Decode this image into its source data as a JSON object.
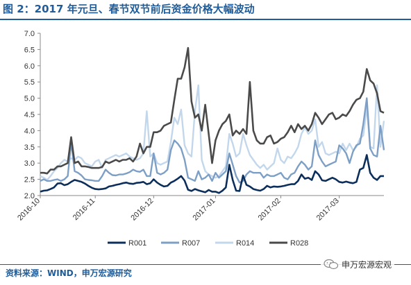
{
  "header": {
    "title": "图 2：2017 年元旦、春节双节前后资金价格大幅波动"
  },
  "footer": {
    "source": "资料来源：WIND，申万宏源研究"
  },
  "watermark": {
    "text": "申万宏源宏观",
    "icon": "wechat-icon"
  },
  "colors": {
    "R001": "#0c2e5a",
    "R007": "#7d9fc6",
    "R014": "#c3d7ec",
    "R028": "#4a4a4a",
    "accent": "#1f5c99"
  },
  "chart_data": {
    "type": "line",
    "title": "",
    "xlabel": "",
    "ylabel": "",
    "ylim": [
      2.0,
      7.0
    ],
    "yticks": [
      "2.0",
      "2.5",
      "3.0",
      "3.5",
      "4.0",
      "4.5",
      "5.0",
      "5.5",
      "6.0",
      "6.5",
      "7.0"
    ],
    "xtick_labels": [
      "2016-10",
      "2016-11",
      "2016-12",
      "2017-01",
      "2017-02",
      "2017-03"
    ],
    "xtick_indices": [
      0,
      16,
      33,
      51,
      70,
      87
    ],
    "grid": false,
    "legend_position": "bottom",
    "series": [
      {
        "name": "R001",
        "values": [
          2.12,
          2.15,
          2.16,
          2.2,
          2.25,
          2.37,
          2.38,
          2.32,
          2.35,
          2.42,
          2.48,
          2.45,
          2.42,
          2.37,
          2.3,
          2.24,
          2.2,
          2.19,
          2.2,
          2.22,
          2.28,
          2.3,
          2.33,
          2.35,
          2.38,
          2.4,
          2.37,
          2.36,
          2.39,
          2.4,
          2.42,
          2.35,
          2.38,
          2.5,
          2.4,
          2.33,
          2.28,
          2.3,
          2.4,
          2.45,
          2.52,
          2.6,
          2.46,
          2.18,
          2.14,
          2.2,
          2.16,
          2.13,
          2.1,
          2.17,
          2.12,
          2.12,
          2.08,
          2.15,
          2.25,
          2.95,
          2.48,
          2.15,
          2.14,
          2.62,
          2.33,
          2.28,
          2.2,
          2.17,
          2.15,
          2.2,
          2.3,
          2.25,
          2.28,
          2.27,
          2.28,
          2.3,
          2.33,
          2.35,
          2.35,
          2.45,
          2.65,
          2.52,
          2.55,
          2.48,
          2.75,
          2.65,
          2.47,
          2.45,
          2.5,
          2.55,
          2.5,
          2.42,
          2.4,
          2.43,
          2.4,
          2.38,
          2.42,
          2.8,
          2.85,
          3.25,
          2.7,
          2.55,
          2.48,
          2.6,
          2.6
        ]
      },
      {
        "name": "R007",
        "values": [
          2.45,
          2.5,
          2.45,
          2.45,
          2.48,
          2.5,
          2.45,
          2.5,
          2.6,
          3.65,
          2.75,
          2.7,
          2.62,
          2.5,
          2.48,
          2.47,
          2.45,
          2.45,
          2.6,
          2.8,
          2.7,
          2.63,
          2.62,
          2.65,
          2.65,
          2.68,
          2.72,
          2.8,
          2.75,
          2.73,
          2.8,
          2.6,
          2.6,
          3.3,
          2.7,
          2.65,
          2.7,
          2.8,
          3.4,
          3.7,
          3.6,
          3.45,
          3.1,
          2.55,
          2.5,
          2.45,
          2.75,
          2.5,
          2.55,
          2.65,
          2.45,
          2.7,
          2.55,
          2.65,
          2.75,
          3.3,
          2.95,
          2.6,
          2.4,
          2.45,
          2.65,
          2.75,
          2.7,
          2.7,
          2.7,
          2.55,
          2.65,
          2.6,
          2.6,
          2.65,
          2.7,
          2.55,
          2.5,
          2.65,
          2.7,
          2.9,
          3.05,
          2.95,
          2.8,
          2.9,
          3.7,
          3.25,
          3.05,
          2.9,
          2.95,
          3.0,
          3.05,
          3.55,
          3.45,
          3.3,
          3.0,
          3.35,
          3.55,
          3.6,
          4.2,
          5.0,
          3.45,
          3.25,
          3.2,
          4.15,
          3.4
        ]
      },
      {
        "name": "R014",
        "values": [
          2.6,
          2.55,
          2.48,
          2.6,
          2.75,
          2.85,
          3.0,
          3.1,
          3.05,
          3.15,
          3.1,
          3.2,
          3.15,
          3.0,
          2.95,
          2.9,
          3.05,
          3.1,
          2.85,
          3.1,
          3.15,
          3.2,
          3.25,
          3.2,
          3.25,
          3.3,
          3.2,
          3.15,
          3.1,
          3.15,
          3.3,
          4.6,
          3.2,
          3.3,
          3.0,
          2.95,
          3.0,
          3.05,
          3.65,
          4.4,
          4.2,
          4.65,
          3.55,
          3.3,
          3.2,
          4.6,
          5.4,
          3.1,
          2.75,
          2.65,
          2.6,
          2.55,
          2.6,
          2.75,
          2.9,
          3.9,
          3.6,
          3.2,
          3.3,
          3.9,
          3.55,
          3.25,
          3.1,
          2.95,
          2.85,
          2.95,
          2.8,
          2.9,
          3.0,
          3.45,
          3.1,
          3.0,
          3.2,
          3.15,
          3.3,
          3.5,
          3.9,
          4.1,
          3.9,
          4.0,
          4.35,
          3.5,
          3.65,
          3.3,
          3.25,
          3.3,
          3.35,
          3.3,
          3.6,
          3.4,
          3.6,
          3.4,
          3.5,
          3.75,
          3.85,
          4.7,
          3.5,
          3.45,
          5.4,
          3.5,
          4.3
        ]
      },
      {
        "name": "R028",
        "values": [
          2.7,
          2.7,
          2.68,
          2.8,
          2.8,
          2.9,
          2.9,
          2.95,
          3.0,
          3.8,
          3.0,
          3.05,
          2.9,
          2.9,
          2.88,
          2.85,
          2.85,
          2.85,
          2.88,
          3.05,
          3.0,
          3.05,
          3.1,
          3.05,
          3.1,
          3.1,
          3.15,
          3.05,
          3.2,
          3.6,
          3.3,
          3.5,
          3.5,
          3.95,
          3.95,
          4.0,
          4.15,
          4.2,
          4.25,
          4.95,
          5.6,
          5.6,
          5.95,
          6.55,
          4.9,
          4.4,
          4.5,
          4.0,
          4.8,
          3.9,
          3.0,
          3.7,
          4.0,
          4.2,
          4.3,
          4.5,
          3.85,
          4.0,
          3.9,
          4.05,
          3.9,
          5.5,
          4.0,
          3.7,
          3.6,
          3.6,
          3.8,
          3.85,
          3.6,
          3.65,
          3.75,
          3.8,
          3.95,
          4.15,
          3.95,
          4.2,
          4.05,
          4.15,
          4.0,
          4.2,
          4.55,
          4.4,
          4.2,
          4.35,
          4.5,
          4.55,
          4.35,
          4.4,
          4.5,
          4.45,
          4.6,
          4.8,
          4.95,
          5.0,
          5.2,
          5.9,
          5.55,
          5.45,
          5.15,
          4.6,
          4.55
        ]
      }
    ]
  }
}
